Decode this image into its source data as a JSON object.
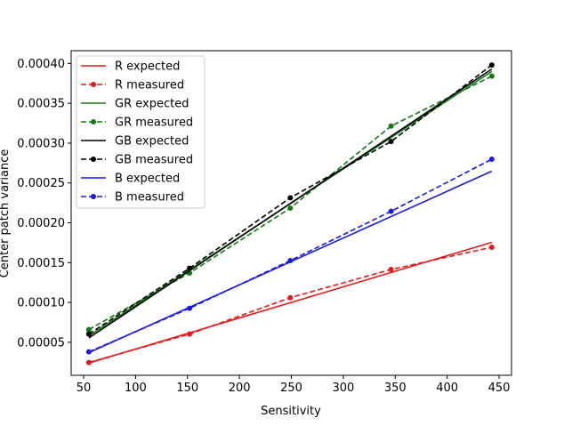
{
  "chart_data": {
    "type": "line",
    "title": "",
    "xlabel": "Sensitivity",
    "ylabel": "Center patch variance",
    "xlim": [
      38,
      462
    ],
    "ylim": [
      8.6e-06,
      0.000416
    ],
    "xticks": [
      50,
      100,
      150,
      200,
      250,
      300,
      350,
      400,
      450
    ],
    "yticks": [
      5e-05,
      0.0001,
      0.00015,
      0.0002,
      0.00025,
      0.0003,
      0.00035,
      0.0004
    ],
    "ytick_labels": [
      "0.00005",
      "0.00010",
      "0.00015",
      "0.00020",
      "0.00025",
      "0.00030",
      "0.00035",
      "0.00040"
    ],
    "grid": false,
    "legend_position": "top-left",
    "series": [
      {
        "name": "R expected",
        "color": "#e41a1c",
        "style": "solid",
        "markers": false,
        "x": [
          55,
          443
        ],
        "y": [
          2.4e-05,
          0.0001755
        ]
      },
      {
        "name": "R measured",
        "color": "#e41a1c",
        "style": "dashed",
        "markers": true,
        "x": [
          55,
          152,
          249,
          346,
          443
        ],
        "y": [
          2.47e-05,
          6.04e-05,
          0.000106,
          0.0001414,
          0.0001693
        ]
      },
      {
        "name": "GR expected",
        "color": "#137a13",
        "style": "solid",
        "markers": false,
        "x": [
          55,
          443
        ],
        "y": [
          5.8e-05,
          0.00039
        ]
      },
      {
        "name": "GR measured",
        "color": "#137a13",
        "style": "dashed",
        "markers": true,
        "x": [
          55,
          152,
          249,
          346,
          443
        ],
        "y": [
          6.6e-05,
          0.000137,
          0.0002184,
          0.0003214,
          0.000384
        ]
      },
      {
        "name": "GB expected",
        "color": "#000000",
        "style": "solid",
        "markers": false,
        "x": [
          55,
          443
        ],
        "y": [
          5.55e-05,
          0.000393
        ]
      },
      {
        "name": "GB measured",
        "color": "#000000",
        "style": "dashed",
        "markers": true,
        "x": [
          55,
          152,
          249,
          346,
          443
        ],
        "y": [
          6.03e-05,
          0.000143,
          0.0002314,
          0.000302,
          0.000398
        ]
      },
      {
        "name": "B expected",
        "color": "#1a1ae0",
        "style": "solid",
        "markers": false,
        "x": [
          55,
          443
        ],
        "y": [
          3.7e-05,
          0.0002648
        ]
      },
      {
        "name": "B measured",
        "color": "#1a1ae0",
        "style": "dashed",
        "markers": true,
        "x": [
          55,
          152,
          249,
          346,
          443
        ],
        "y": [
          3.8e-05,
          9.27e-05,
          0.0001526,
          0.0002144,
          0.0002798
        ]
      }
    ]
  }
}
